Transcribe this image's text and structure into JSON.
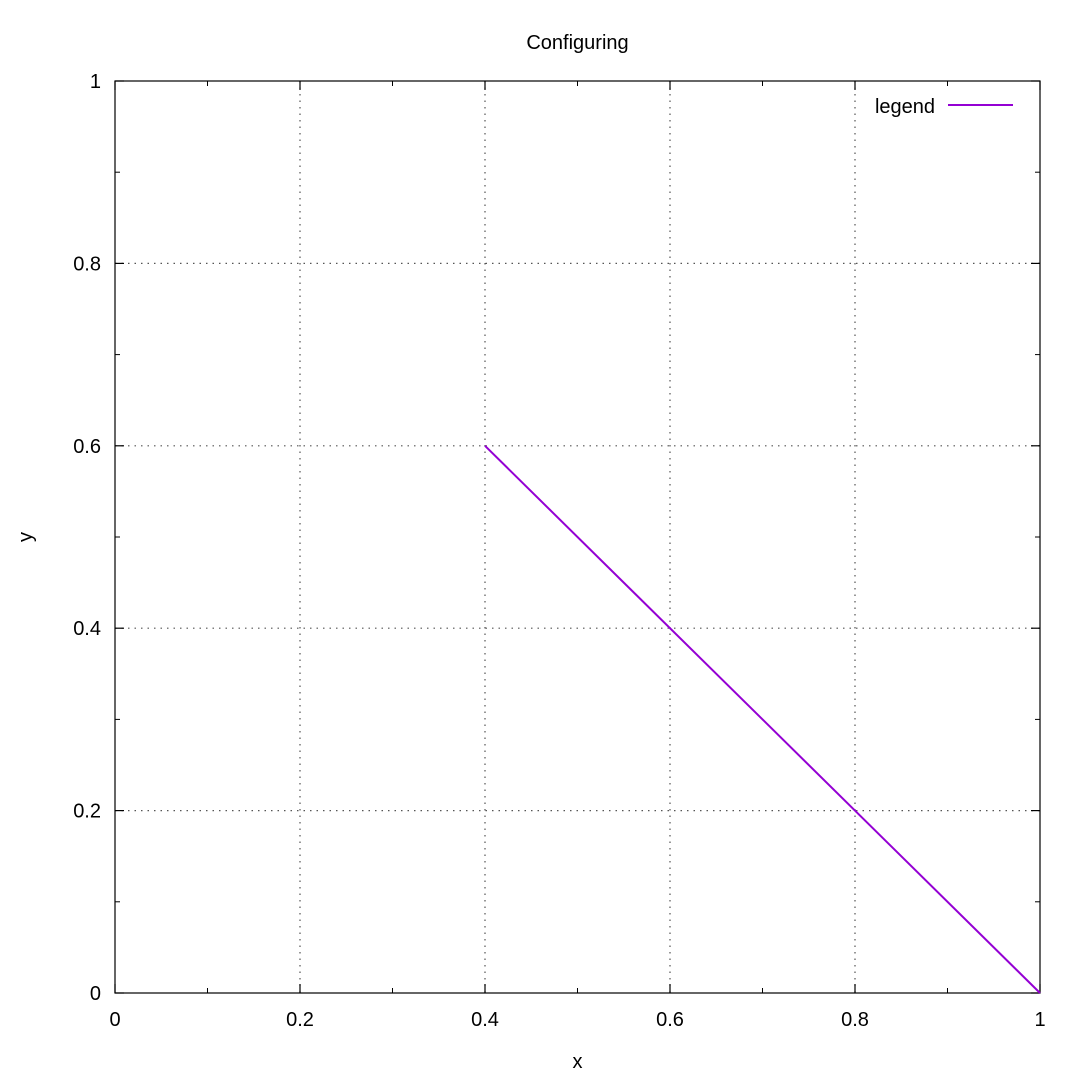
{
  "chart_data": {
    "type": "line",
    "title": "Configuring",
    "xlabel": "x",
    "ylabel": "y",
    "xlim": [
      0,
      1
    ],
    "ylim": [
      0,
      1
    ],
    "x_ticks": [
      "0",
      "0.2",
      "0.4",
      "0.6",
      "0.8",
      "1"
    ],
    "y_ticks": [
      "0",
      "0.2",
      "0.4",
      "0.6",
      "0.8",
      "1"
    ],
    "grid": true,
    "legend_position": "top-right",
    "series": [
      {
        "name": "legend",
        "color": "#9400d3",
        "x": [
          0.4,
          1.0
        ],
        "y": [
          0.6,
          0.0
        ]
      }
    ]
  }
}
